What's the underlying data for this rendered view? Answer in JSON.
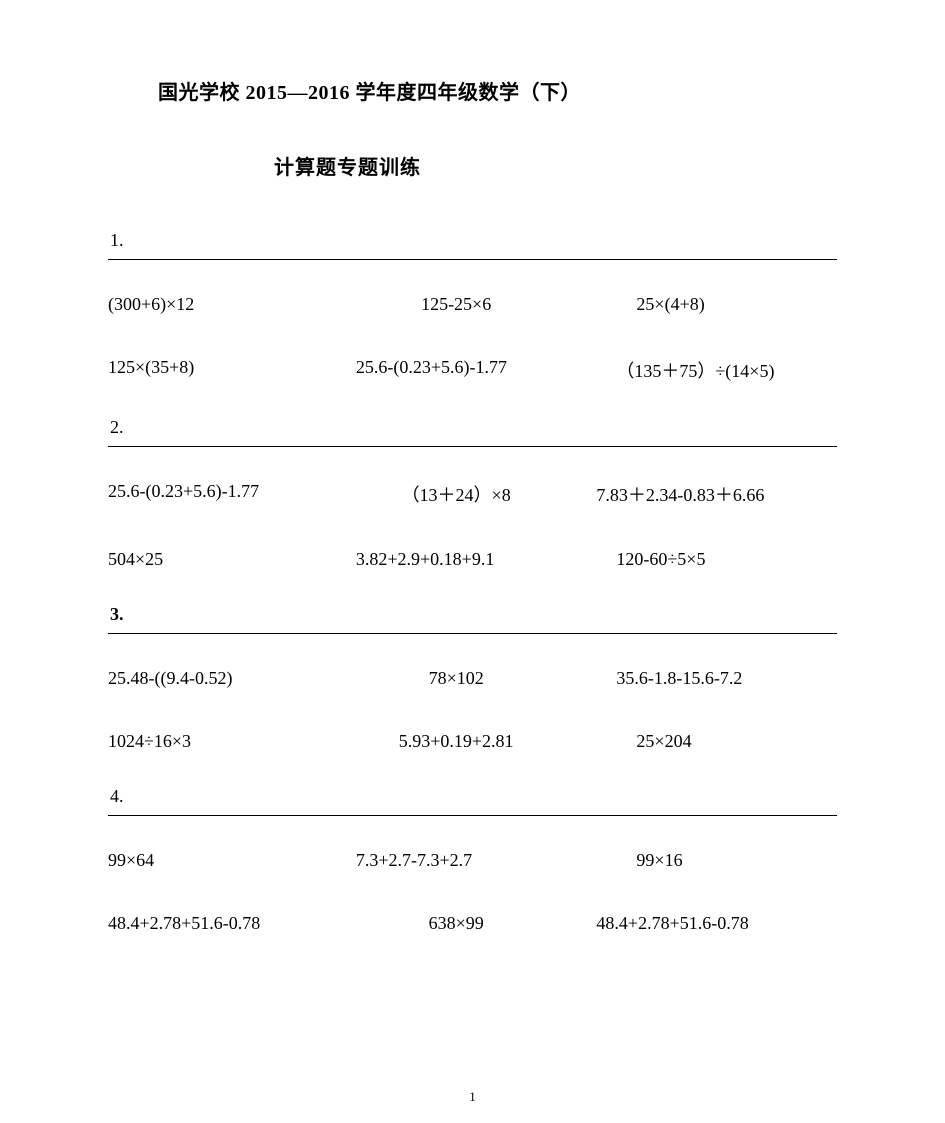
{
  "title_main": "国光学校 2015—2016 学年度四年级数学（下）",
  "title_sub": "计算题专题训练",
  "sections": [
    {
      "num": "1.",
      "bold": false,
      "rows": [
        {
          "c1": "(300+6)×12",
          "c2": "125-25×6",
          "c3": "25×(4+8)",
          "c2_class": "center",
          "c3_class": "indent"
        },
        {
          "c1": "125×(35+8)",
          "c2": "25.6-(0.23+5.6)-1.77",
          "c3": "（135＋75）÷(14×5)",
          "c2_class": "",
          "c3_class": "indent2"
        }
      ]
    },
    {
      "num": "2.",
      "bold": false,
      "rows": [
        {
          "c1": "25.6-(0.23+5.6)-1.77",
          "c2": "（13＋24）×8",
          "c3": "7.83＋2.34-0.83＋6.66",
          "c2_class": "center",
          "c3_class": ""
        },
        {
          "c1": "504×25",
          "c2": "3.82+2.9+0.18+9.1",
          "c3": "120-60÷5×5",
          "c2_class": "",
          "c3_class": "indent2"
        }
      ]
    },
    {
      "num": "3.",
      "bold": true,
      "rows": [
        {
          "c1": "25.48-((9.4-0.52)",
          "c2": "78×102",
          "c3": "35.6-1.8-15.6-7.2",
          "c2_class": "center",
          "c3_class": "indent2"
        },
        {
          "c1": "1024÷16×3",
          "c2": "5.93+0.19+2.81",
          "c3": "25×204",
          "c2_class": "center",
          "c3_class": "indent"
        }
      ]
    },
    {
      "num": "4.",
      "bold": false,
      "rows": [
        {
          "c1": "99×64",
          "c2": "7.3+2.7-7.3+2.7",
          "c3": "99×16",
          "c2_class": "",
          "c3_class": "indent"
        },
        {
          "c1": "48.4+2.78+51.6-0.78",
          "c2": "638×99",
          "c3": "48.4+2.78+51.6-0.78",
          "c2_class": "center",
          "c3_class": ""
        }
      ]
    }
  ],
  "page_number": "1"
}
